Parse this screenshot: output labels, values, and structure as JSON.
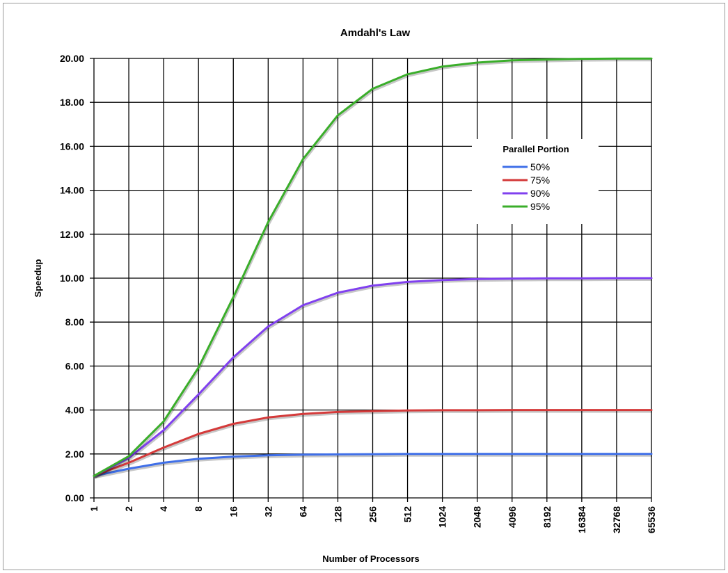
{
  "chart_data": {
    "type": "line",
    "title": "Amdahl's Law",
    "xlabel": "Number of Processors",
    "ylabel": "Speedup",
    "x_scale": "log2",
    "categories": [
      "1",
      "2",
      "4",
      "8",
      "16",
      "32",
      "64",
      "128",
      "256",
      "512",
      "1024",
      "2048",
      "4096",
      "8192",
      "16384",
      "32768",
      "65536"
    ],
    "y_tick_labels": [
      "0.00",
      "2.00",
      "4.00",
      "6.00",
      "8.00",
      "10.00",
      "12.00",
      "14.00",
      "16.00",
      "18.00",
      "20.00"
    ],
    "ylim": [
      0,
      20
    ],
    "grid": true,
    "legend": {
      "title": "Parallel Portion",
      "position": "top-right"
    },
    "series": [
      {
        "name": "50%",
        "color": "#3f6fe8",
        "values": [
          1.0,
          1.33,
          1.6,
          1.78,
          1.88,
          1.94,
          1.97,
          1.98,
          1.99,
          2.0,
          2.0,
          2.0,
          2.0,
          2.0,
          2.0,
          2.0,
          2.0
        ]
      },
      {
        "name": "75%",
        "color": "#d43a3a",
        "values": [
          1.0,
          1.6,
          2.29,
          2.91,
          3.37,
          3.66,
          3.82,
          3.91,
          3.95,
          3.98,
          3.99,
          3.99,
          4.0,
          4.0,
          4.0,
          4.0,
          4.0
        ]
      },
      {
        "name": "90%",
        "color": "#8040ef",
        "values": [
          1.0,
          1.82,
          3.08,
          4.71,
          6.4,
          7.8,
          8.77,
          9.34,
          9.66,
          9.83,
          9.91,
          9.96,
          9.98,
          9.99,
          9.99,
          10.0,
          10.0
        ]
      },
      {
        "name": "95%",
        "color": "#3aae2a",
        "values": [
          1.0,
          1.9,
          3.48,
          5.93,
          9.14,
          12.55,
          15.42,
          17.41,
          18.62,
          19.28,
          19.63,
          19.81,
          19.91,
          19.95,
          19.98,
          19.99,
          19.99
        ]
      }
    ]
  }
}
